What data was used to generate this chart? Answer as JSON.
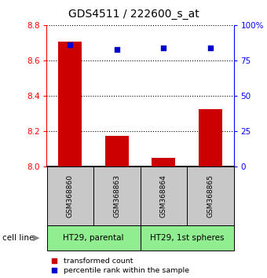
{
  "title": "GDS4511 / 222600_s_at",
  "samples": [
    "GSM368860",
    "GSM368863",
    "GSM368864",
    "GSM368865"
  ],
  "bar_values": [
    8.705,
    8.175,
    8.05,
    8.325
  ],
  "bar_base": 8.0,
  "blue_values": [
    86,
    83,
    84,
    84
  ],
  "ylim_left": [
    8.0,
    8.8
  ],
  "ylim_right": [
    0,
    100
  ],
  "yticks_left": [
    8.0,
    8.2,
    8.4,
    8.6,
    8.8
  ],
  "yticks_right": [
    0,
    25,
    50,
    75,
    100
  ],
  "ytick_labels_right": [
    "0",
    "25",
    "50",
    "75",
    "100%"
  ],
  "bar_color": "#cc0000",
  "blue_color": "#0000cc",
  "cell_line_labels": [
    "HT29, parental",
    "HT29, 1st spheres"
  ],
  "cell_line_spans": [
    [
      0,
      2
    ],
    [
      2,
      4
    ]
  ],
  "cell_line_color": "#90ee90",
  "sample_box_color": "#c8c8c8",
  "legend_bar_label": "transformed count",
  "legend_dot_label": "percentile rank within the sample",
  "figsize": [
    3.4,
    3.54
  ],
  "dpi": 100
}
